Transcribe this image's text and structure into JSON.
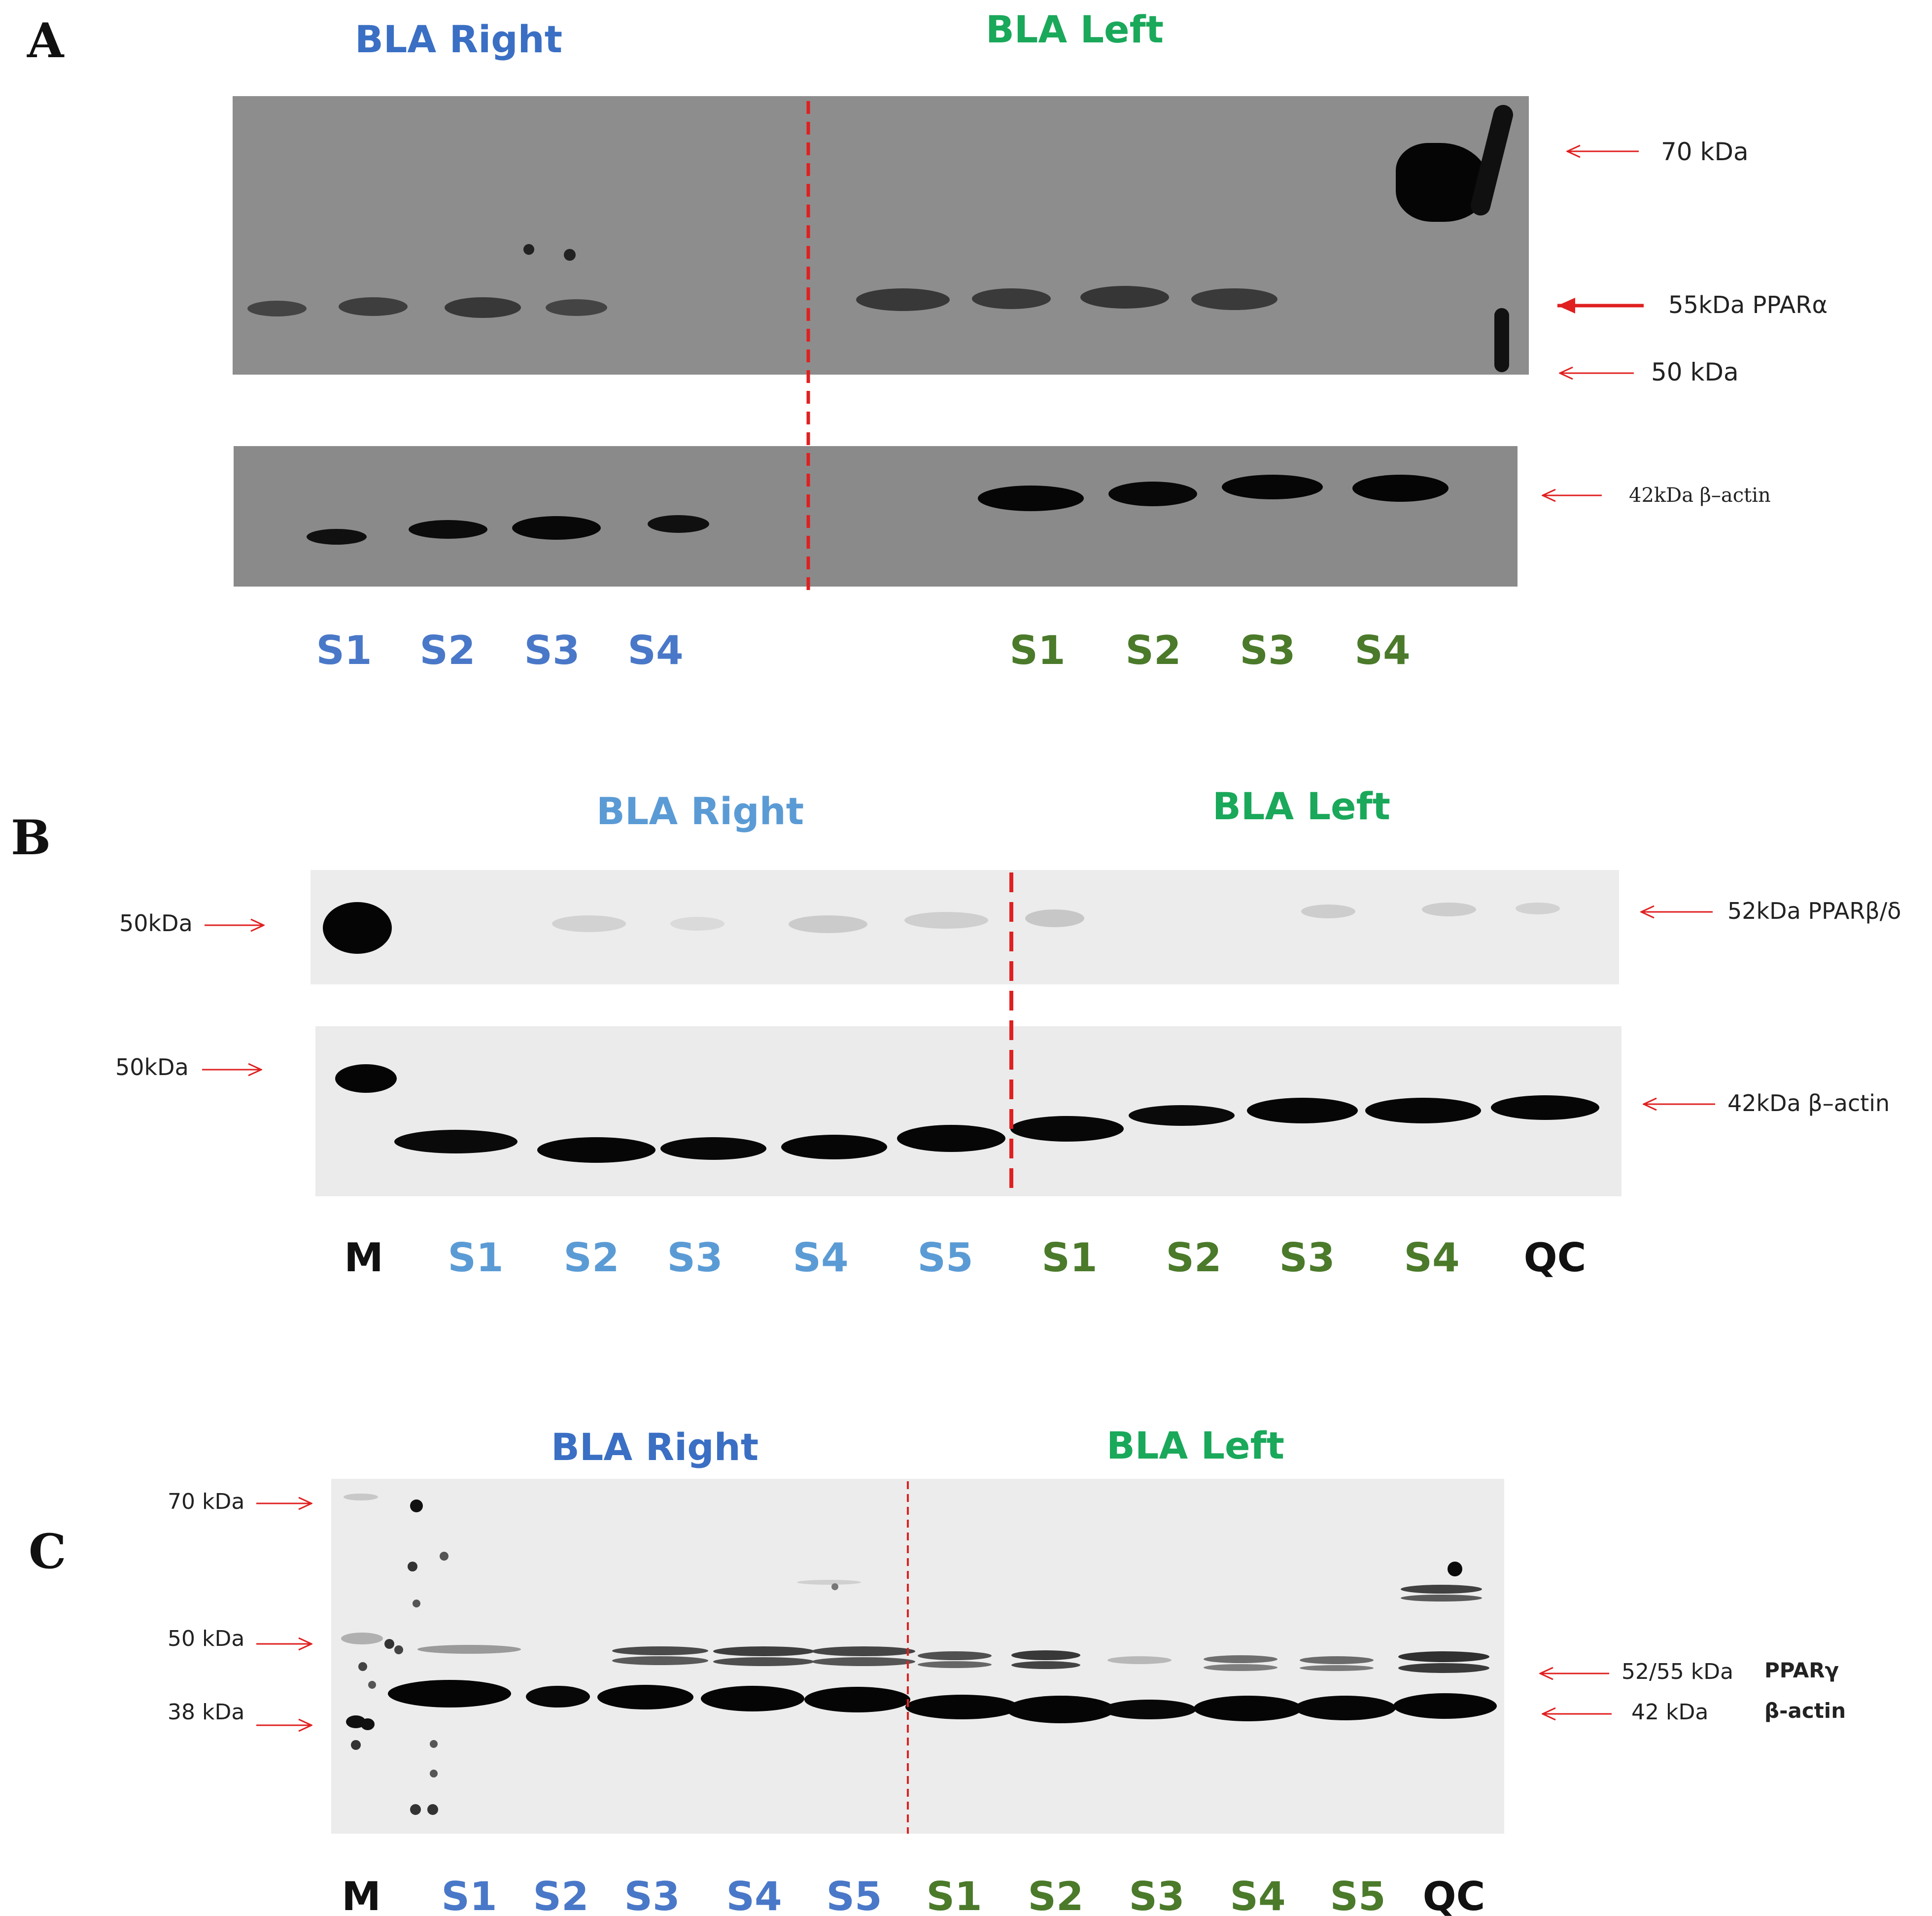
{
  "colors": {
    "right_a": "#3a6fc4",
    "left_a": "#1aa85a",
    "right_b": "#5b9bd5",
    "left_b": "#1aa85a",
    "right_c": "#3a6fc4",
    "left_c": "#1aa85a",
    "lane_right": "#4a78c8",
    "lane_right_b": "#5b9bd5",
    "lane_left": "#4a7a2a",
    "lane_black": "#111111",
    "arrow": "#e02020"
  },
  "panelA": {
    "letter": "A",
    "right_label": "BLA Right",
    "left_label": "BLA Left",
    "mw_70": "70 kDa",
    "mw_55": "55kDa PPARα",
    "mw_50": "50 kDa",
    "mw_actin": "42kDa β–actin",
    "lanes_right": [
      "S1",
      "S2",
      "S3",
      "S4"
    ],
    "lanes_left": [
      "S1",
      "S2",
      "S3",
      "S4"
    ]
  },
  "panelB": {
    "letter": "B",
    "right_label": "BLA Right",
    "left_label": "BLA Left",
    "mw_left_top": "50kDa",
    "mw_left_bottom": "50kDa",
    "mw_right_top": "52kDa PPARβ/δ",
    "mw_right_bottom": "42kDa β–actin",
    "lanes": [
      {
        "label": "M",
        "group": "black"
      },
      {
        "label": "S1",
        "group": "right"
      },
      {
        "label": "S2",
        "group": "right"
      },
      {
        "label": "S3",
        "group": "right"
      },
      {
        "label": "S4",
        "group": "right"
      },
      {
        "label": "S5",
        "group": "right"
      },
      {
        "label": "S1",
        "group": "left"
      },
      {
        "label": "S2",
        "group": "left"
      },
      {
        "label": "S3",
        "group": "left"
      },
      {
        "label": "S4",
        "group": "left"
      },
      {
        "label": "QC",
        "group": "black"
      }
    ]
  },
  "panelC": {
    "letter": "C",
    "right_label": "BLA Right",
    "left_label": "BLA Left",
    "mw_70": "70 kDa",
    "mw_50": "50 kDa",
    "mw_38": "38 kDa",
    "mw_right_top_a": "52/55 kDa",
    "mw_right_top_b": "PPARγ",
    "mw_right_bottom_a": "42 kDa",
    "mw_right_bottom_b": "β-actin",
    "lanes": [
      {
        "label": "M",
        "group": "black"
      },
      {
        "label": "S1",
        "group": "right"
      },
      {
        "label": "S2",
        "group": "right"
      },
      {
        "label": "S3",
        "group": "right"
      },
      {
        "label": "S4",
        "group": "right"
      },
      {
        "label": "S5",
        "group": "right"
      },
      {
        "label": "S1",
        "group": "left"
      },
      {
        "label": "S2",
        "group": "left"
      },
      {
        "label": "S3",
        "group": "left"
      },
      {
        "label": "S4",
        "group": "left"
      },
      {
        "label": "S5",
        "group": "left"
      },
      {
        "label": "QC",
        "group": "black"
      }
    ]
  }
}
